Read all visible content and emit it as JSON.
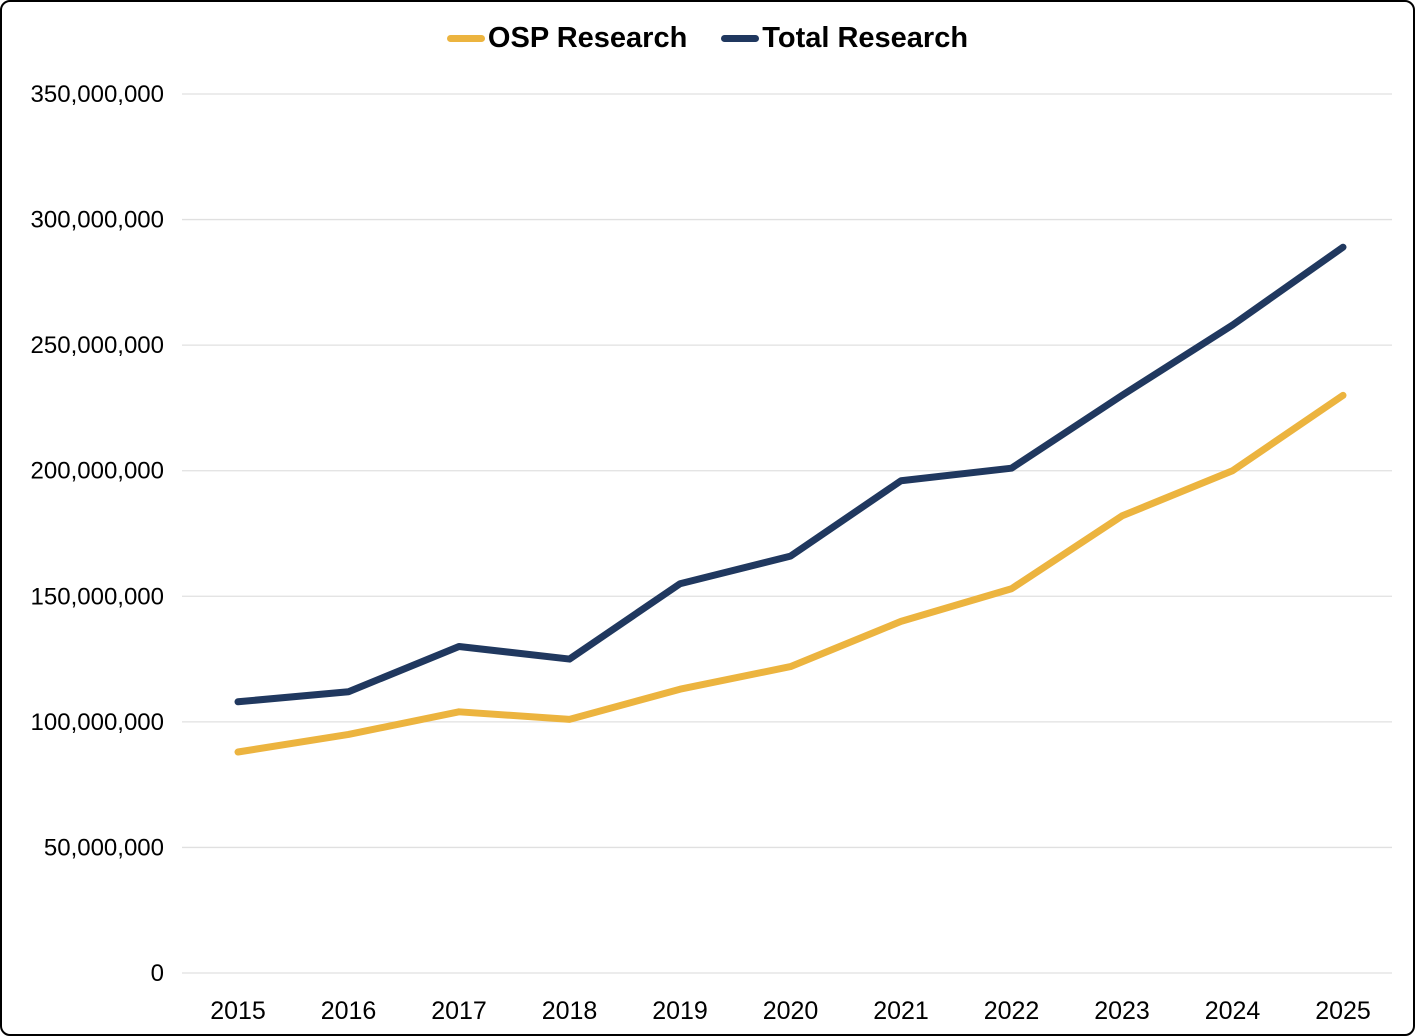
{
  "legend": {
    "position": "top",
    "items": [
      {
        "label": "OSP Research"
      },
      {
        "label": "Total Research"
      }
    ]
  },
  "chart_data": {
    "type": "line",
    "title": "",
    "categories": [
      "2015",
      "2016",
      "2017",
      "2018",
      "2019",
      "2020",
      "2021",
      "2022",
      "2023",
      "2024",
      "2025"
    ],
    "series": [
      {
        "name": "OSP Research",
        "color": "#ECB43F",
        "values": [
          88000000,
          95000000,
          104000000,
          101000000,
          113000000,
          122000000,
          140000000,
          153000000,
          182000000,
          200000000,
          230000000
        ]
      },
      {
        "name": "Total Research",
        "color": "#20385F",
        "values": [
          108000000,
          112000000,
          130000000,
          125000000,
          155000000,
          166000000,
          196000000,
          201000000,
          230000000,
          258000000,
          289000000
        ]
      }
    ],
    "y_axis": {
      "min": 0,
      "max": 350000000,
      "step": 50000000,
      "tick_labels": [
        "0",
        "50,000,000",
        "100,000,000",
        "150,000,000",
        "200,000,000",
        "250,000,000",
        "300,000,000",
        "350,000,000"
      ]
    },
    "x_axis": {
      "tick_labels": [
        "2015",
        "2016",
        "2017",
        "2018",
        "2019",
        "2020",
        "2021",
        "2022",
        "2023",
        "2024",
        "2025"
      ]
    },
    "grid": "horizontal",
    "gridline_color": "#E0E0E0",
    "legend_position": "top"
  }
}
